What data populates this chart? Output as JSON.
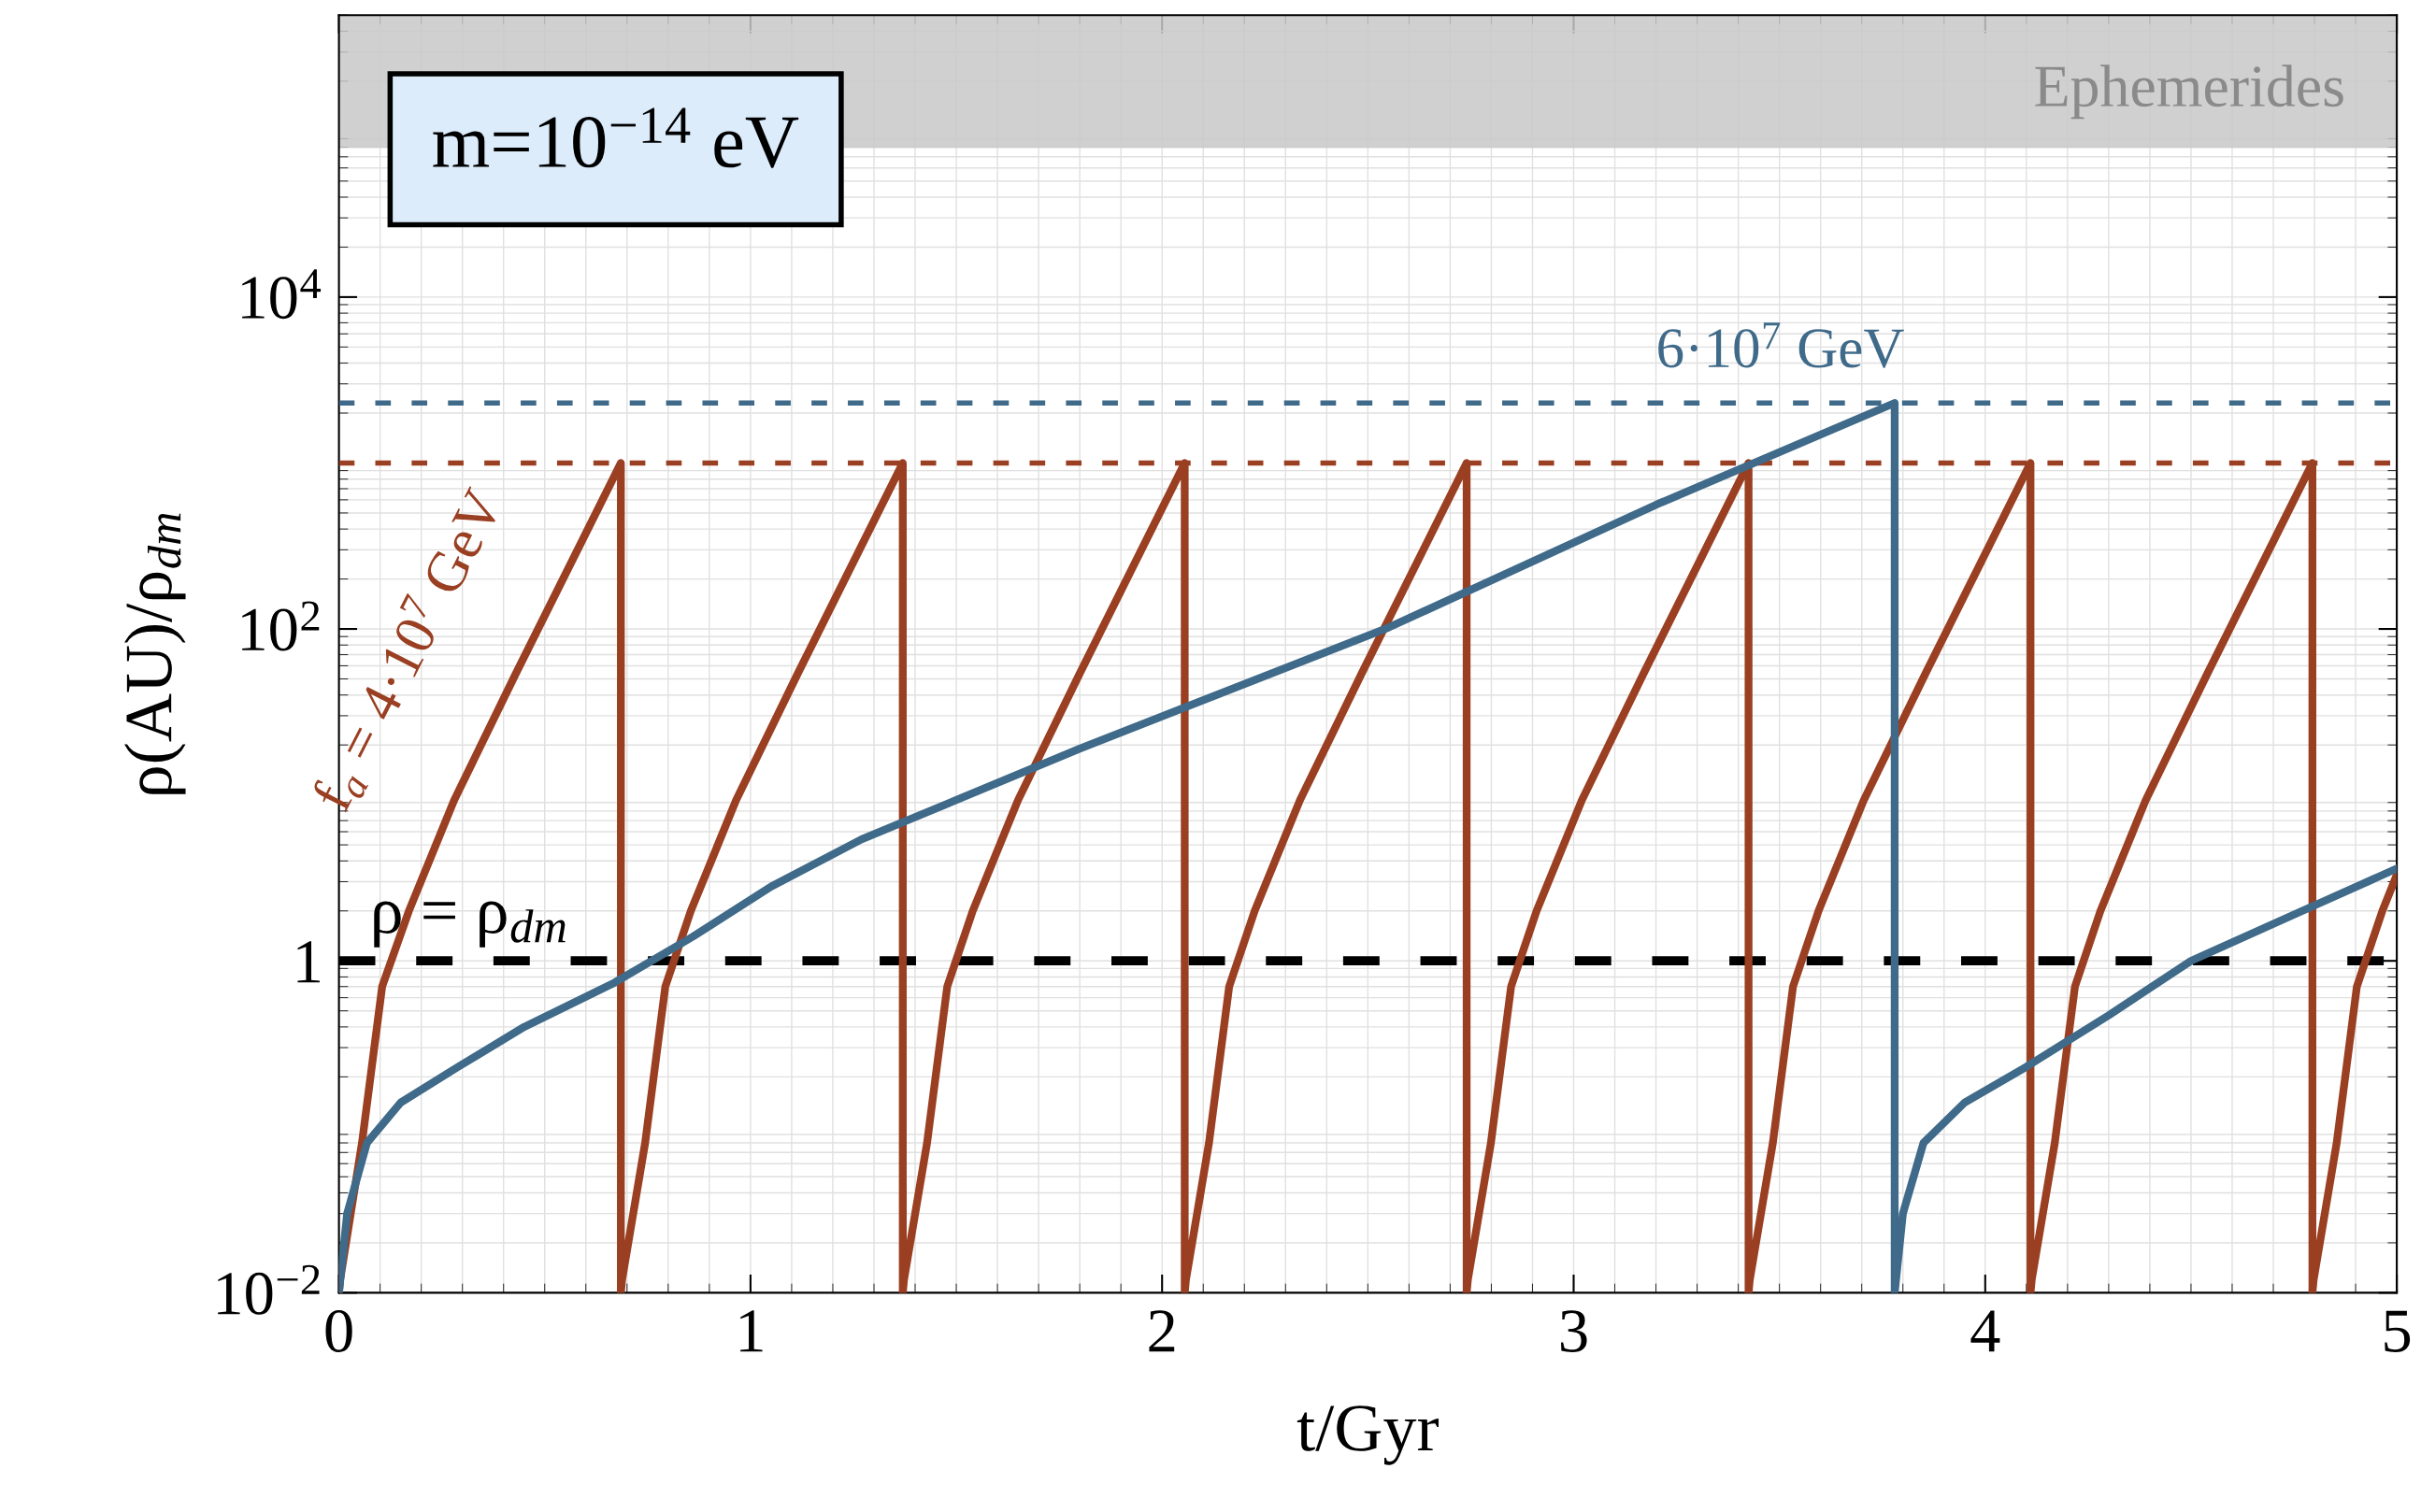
{
  "chart_data": {
    "type": "line",
    "xlabel": "t/Gyr",
    "ylabel": "ρ(AU)/ρ$_{dm}$",
    "log": "y",
    "grid": true,
    "line_style": "solid",
    "marker": "none",
    "xlim": [
      0,
      5
    ],
    "xticks": [
      0,
      1,
      2,
      3,
      4,
      5
    ],
    "ylim": [
      0.01,
      500000
    ],
    "yticks": [
      {
        "value": 0.01,
        "label": "10$^{−2}$"
      },
      1,
      {
        "value": 100,
        "label": "10$^{2}$"
      },
      {
        "value": 10000,
        "label": "10$^{4}$"
      }
    ],
    "series": [
      {
        "color": "#9a3f22",
        "x": [
          0.0,
          0.003,
          0.056,
          0.105,
          0.17,
          0.28,
          0.43,
          0.685,
          0.685,
          0.688,
          0.744,
          0.793,
          0.855,
          0.965,
          1.115,
          1.37,
          1.37,
          1.373,
          1.429,
          1.478,
          1.54,
          1.65,
          1.8,
          2.055,
          2.055,
          2.058,
          2.114,
          2.163,
          2.225,
          2.335,
          2.485,
          2.74,
          2.74,
          2.743,
          2.799,
          2.848,
          2.91,
          3.02,
          3.17,
          3.425,
          3.425,
          3.428,
          3.484,
          3.533,
          3.595,
          3.705,
          3.855,
          4.11,
          4.11,
          4.113,
          4.169,
          4.218,
          4.28,
          4.39,
          4.54,
          4.795,
          4.795,
          4.798,
          4.854,
          4.903,
          4.965,
          5.0
        ],
        "values": [
          0.01,
          0.012,
          0.08,
          0.7,
          2,
          9.3,
          54,
          1000,
          0.01,
          0.012,
          0.08,
          0.7,
          2,
          9.3,
          54,
          1000,
          0.01,
          0.012,
          0.08,
          0.7,
          2,
          9.3,
          54,
          1000,
          0.01,
          0.012,
          0.08,
          0.7,
          2,
          9.3,
          54,
          1000,
          0.01,
          0.012,
          0.08,
          0.7,
          2,
          9.3,
          54,
          1000,
          0.01,
          0.012,
          0.08,
          0.7,
          2,
          9.3,
          54,
          1000,
          0.01,
          0.012,
          0.08,
          0.7,
          2,
          9.3,
          54,
          1000,
          0.01,
          0.012,
          0.08,
          0.7,
          2,
          3.3
        ]
      },
      {
        "color": "#3f6a89",
        "x": [
          0.0,
          0.02,
          0.068,
          0.15,
          0.29,
          0.45,
          0.67,
          0.86,
          1.05,
          1.27,
          1.8,
          2.55,
          3.2,
          3.78,
          3.78,
          3.8,
          3.85,
          3.95,
          4.1,
          4.3,
          4.5,
          4.75,
          5.0
        ],
        "values": [
          0.01,
          0.03,
          0.08,
          0.14,
          0.23,
          0.4,
          0.74,
          1.4,
          2.8,
          5.4,
          19,
          102,
          560,
          2300,
          0.01,
          0.03,
          0.08,
          0.14,
          0.23,
          0.47,
          1.0,
          1.9,
          3.6
        ]
      }
    ],
    "ref_lines": [
      {
        "axis": "y",
        "value": 1,
        "color": "#000000",
        "line_style": "dashed"
      },
      {
        "axis": "y",
        "value": 2300,
        "color": "#3f6a89",
        "line_style": "dashed"
      },
      {
        "axis": "y",
        "value": 1000,
        "color": "#9a3f22",
        "line_style": "dashed"
      }
    ],
    "bands": [
      {
        "axis": "y",
        "from": 80000,
        "to": 500000,
        "label": "Ephemerides",
        "color": "#c8c8c8"
      }
    ],
    "annotations": [
      "m=10$^{−14}$ eV",
      "ρ = ρ$_{dm}$",
      "6·10$^{7}$ GeV",
      "f$_{a}$ = 4·10$^{7}$ GeV"
    ]
  }
}
